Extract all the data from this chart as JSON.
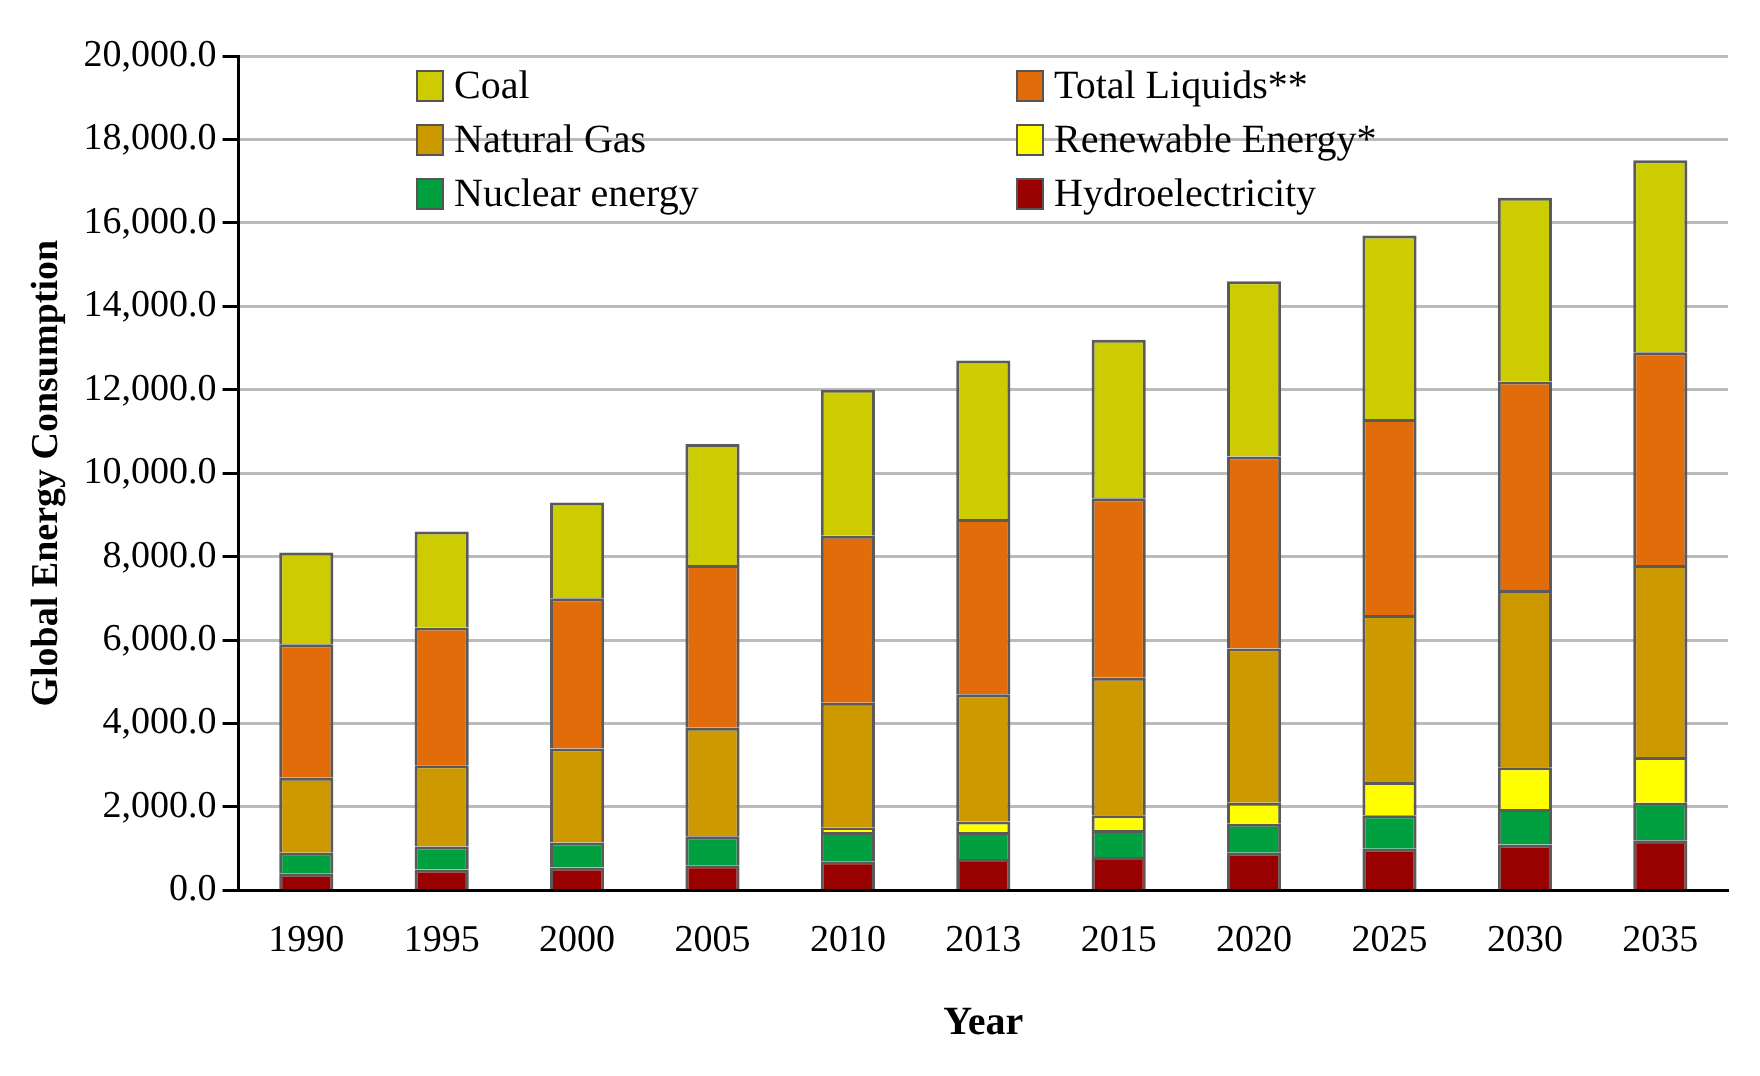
{
  "chart_data": {
    "type": "bar",
    "stacked": true,
    "xlabel": "Year",
    "ylabel": "Global Energy Consumption",
    "categories": [
      "1990",
      "1995",
      "2000",
      "2005",
      "2010",
      "2013",
      "2015",
      "2020",
      "2025",
      "2030",
      "2035"
    ],
    "series": [
      {
        "name": "Hydroelectricity",
        "color": "#990000",
        "values": [
          400,
          500,
          550,
          600,
          700,
          750,
          800,
          900,
          1000,
          1100,
          1200
        ]
      },
      {
        "name": "Nuclear energy",
        "color": "#00a040",
        "values": [
          500,
          550,
          600,
          700,
          700,
          650,
          650,
          700,
          800,
          850,
          900
        ]
      },
      {
        "name": "Renewable Energy*",
        "color": "#ffff00",
        "values": [
          0,
          0,
          0,
          0,
          100,
          250,
          350,
          500,
          800,
          1000,
          1100
        ]
      },
      {
        "name": "Natural Gas",
        "color": "#cc9900",
        "values": [
          1800,
          1950,
          2250,
          2600,
          3000,
          3050,
          3300,
          3700,
          4000,
          4250,
          4600
        ]
      },
      {
        "name": "Total Liquids**",
        "color": "#e36c0a",
        "values": [
          3200,
          3300,
          3600,
          3900,
          4000,
          4200,
          4300,
          4600,
          4700,
          5000,
          5100
        ]
      },
      {
        "name": "Coal",
        "color": "#cccc00",
        "values": [
          2200,
          2300,
          2300,
          2900,
          3500,
          3800,
          3800,
          4200,
          4400,
          4400,
          4600
        ]
      }
    ],
    "ylim": [
      0,
      20000
    ],
    "yticks": [
      {
        "value": 0,
        "label": "0.0"
      },
      {
        "value": 2000,
        "label": "2,000.0"
      },
      {
        "value": 4000,
        "label": "4,000.0"
      },
      {
        "value": 6000,
        "label": "6,000.0"
      },
      {
        "value": 8000,
        "label": "8,000.0"
      },
      {
        "value": 10000,
        "label": "10,000.0"
      },
      {
        "value": 12000,
        "label": "12,000.0"
      },
      {
        "value": 14000,
        "label": "14,000.0"
      },
      {
        "value": 16000,
        "label": "16,000.0"
      },
      {
        "value": 18000,
        "label": "18,000.0"
      },
      {
        "value": 20000,
        "label": "20,000.0"
      }
    ],
    "grid": "y",
    "legend": "top"
  }
}
